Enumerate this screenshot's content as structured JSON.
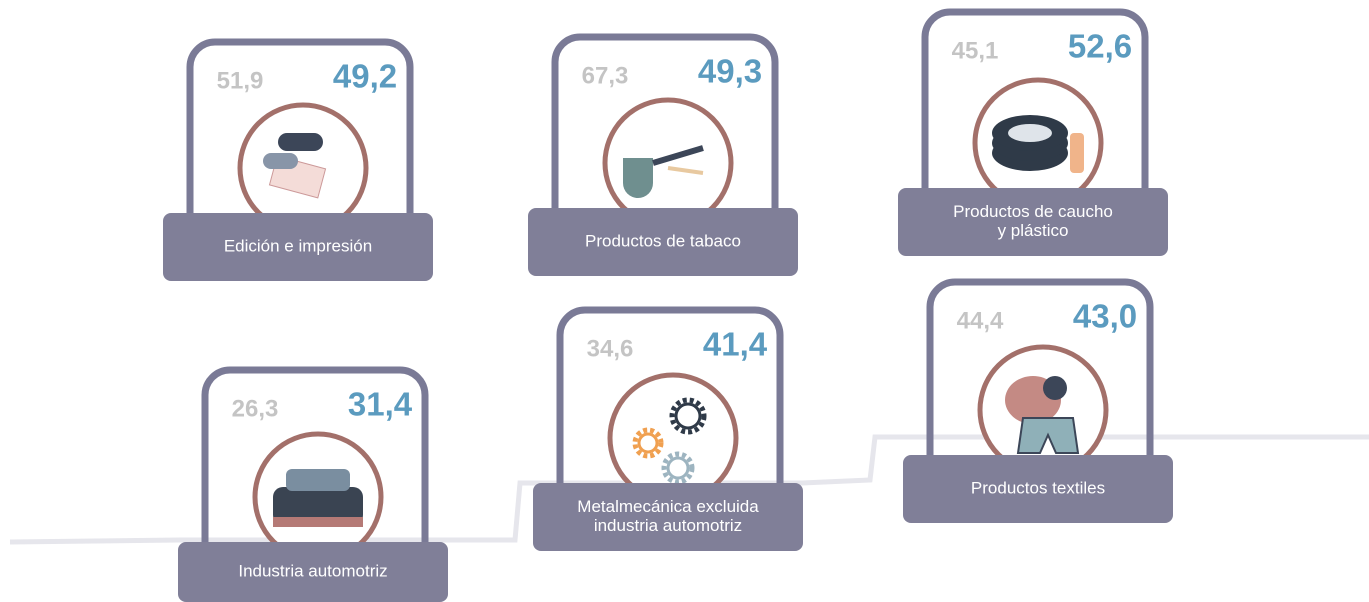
{
  "cards": [
    {
      "label": [
        "Edición e impresión"
      ],
      "value_left": "51,9",
      "value_right": "49,2"
    },
    {
      "label": [
        "Productos de tabaco"
      ],
      "value_left": "67,3",
      "value_right": "49,3"
    },
    {
      "label": [
        "Productos de caucho",
        "y plástico"
      ],
      "value_left": "45,1",
      "value_right": "52,6"
    },
    {
      "label": [
        "Industria automotriz"
      ],
      "value_left": "26,3",
      "value_right": "31,4"
    },
    {
      "label": [
        "Metalmecánica excluida",
        "industria automotriz"
      ],
      "value_left": "34,6",
      "value_right": "41,4"
    },
    {
      "label": [
        "Productos textiles"
      ],
      "value_left": "44,4",
      "value_right": "43,0"
    }
  ]
}
